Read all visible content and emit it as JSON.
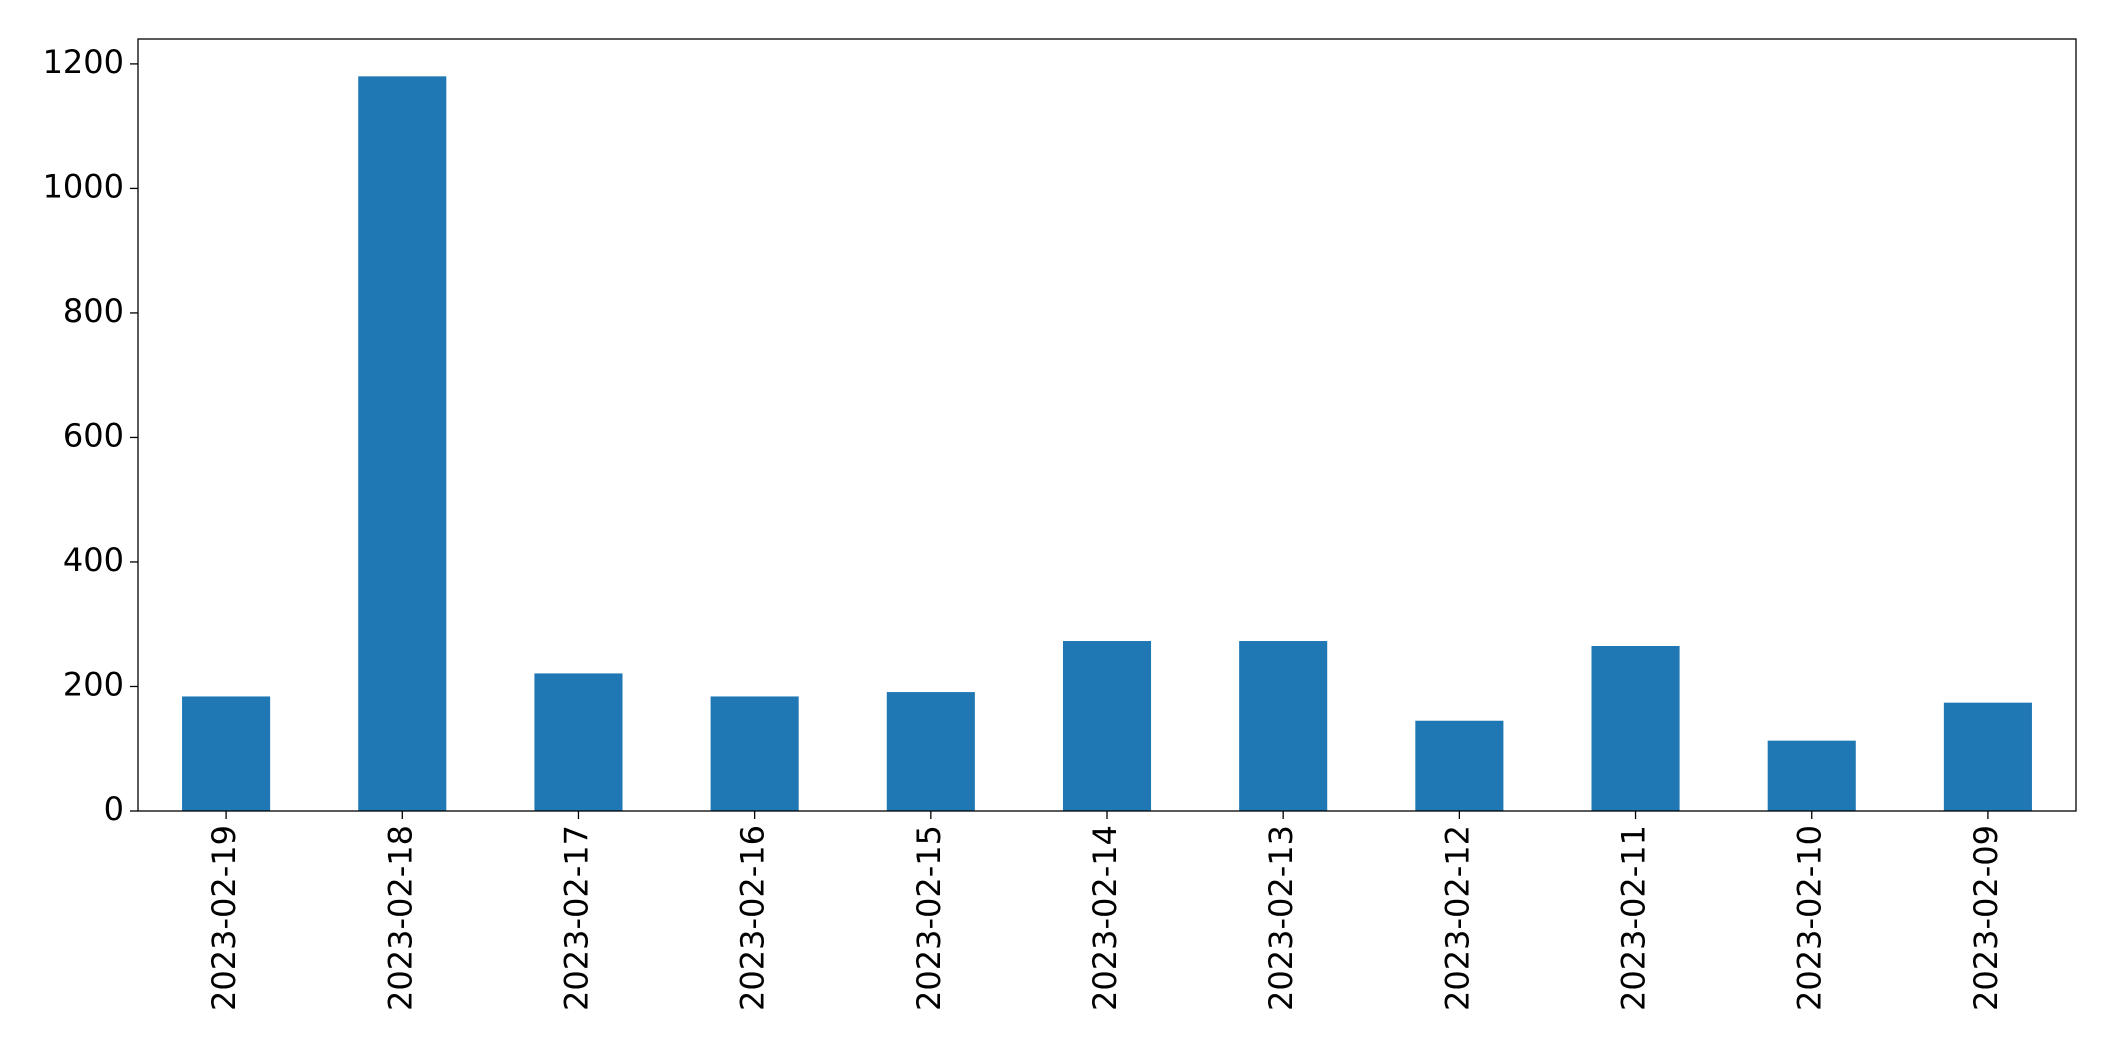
{
  "chart_data": {
    "type": "bar",
    "categories": [
      "2023-02-19",
      "2023-02-18",
      "2023-02-17",
      "2023-02-16",
      "2023-02-15",
      "2023-02-14",
      "2023-02-13",
      "2023-02-12",
      "2023-02-11",
      "2023-02-10",
      "2023-02-09"
    ],
    "values": [
      184,
      1180,
      221,
      184,
      191,
      273,
      273,
      145,
      265,
      113,
      174
    ],
    "color": "#1f77b4",
    "ylim": [
      0,
      1240
    ],
    "yticks": [
      0,
      200,
      400,
      600,
      800,
      1000,
      1200
    ],
    "grid": false
  }
}
